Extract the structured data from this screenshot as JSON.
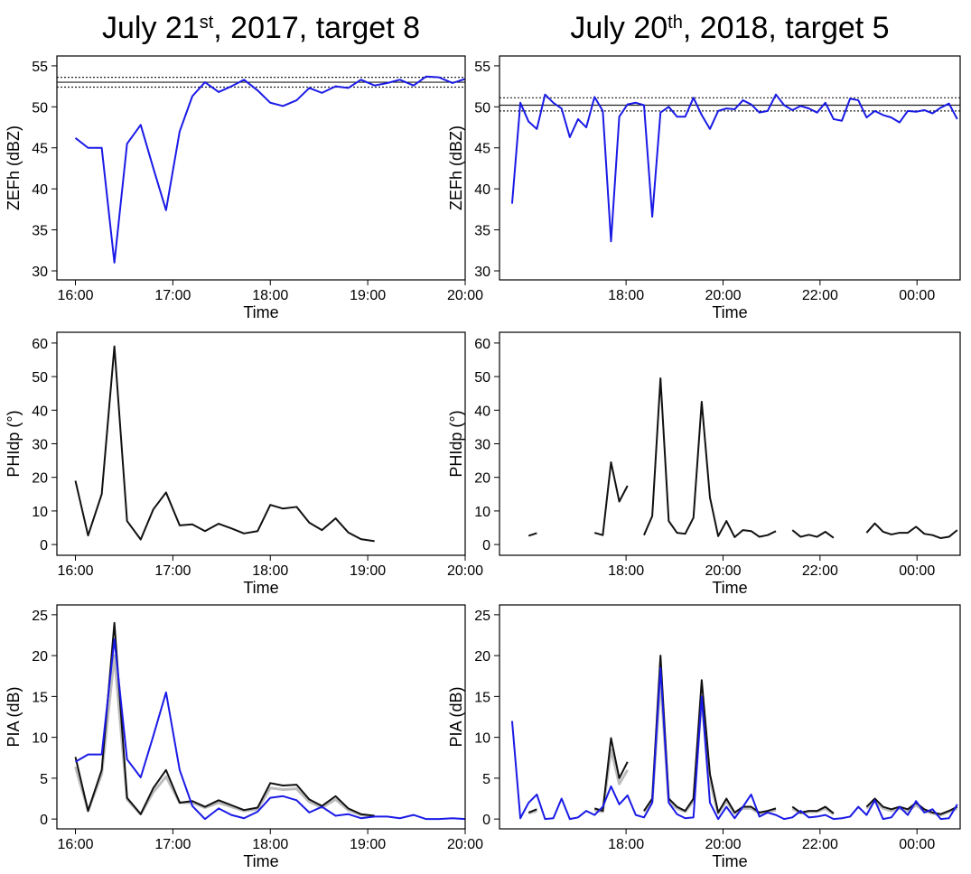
{
  "chart_data": [
    {
      "type": "line",
      "title": [
        "July 21",
        "st",
        ", 2017, target 8"
      ],
      "xlabel": "Time",
      "ylabel": "ZEFh (dBZ)",
      "x": [
        16,
        16.13,
        16.27,
        16.4,
        16.53,
        16.67,
        16.8,
        16.93,
        17.07,
        17.2,
        17.33,
        17.47,
        17.6,
        17.73,
        17.87,
        18,
        18.13,
        18.27,
        18.4,
        18.53,
        18.67,
        18.8,
        18.93,
        19.07,
        19.2,
        19.33,
        19.47,
        19.6,
        19.73,
        19.87,
        20
      ],
      "series": [
        {
          "color": "#1a1ae6",
          "values": [
            46.2,
            45.0,
            45.0,
            31.0,
            45.5,
            47.8,
            42.5,
            37.4,
            47.0,
            51.3,
            53.0,
            51.8,
            52.5,
            53.3,
            52.0,
            50.5,
            50.1,
            50.8,
            52.3,
            51.7,
            52.5,
            52.3,
            53.3,
            52.6,
            52.9,
            53.3,
            52.6,
            53.7,
            53.6,
            52.9,
            53.4
          ]
        }
      ],
      "reference_lines": [
        {
          "value": 53.0,
          "style": "solid"
        },
        {
          "value": 53.6,
          "style": "dotted"
        },
        {
          "value": 52.4,
          "style": "dotted"
        }
      ],
      "xlim": [
        15.81,
        20.0
      ],
      "xticks": [
        {
          "value": 16,
          "label": "16:00"
        },
        {
          "value": 17,
          "label": "17:00"
        },
        {
          "value": 18,
          "label": "18:00"
        },
        {
          "value": 19,
          "label": "19:00"
        },
        {
          "value": 20,
          "label": "20:00"
        }
      ],
      "ylim": [
        28.9,
        56.2
      ],
      "yticks": [
        30,
        35,
        40,
        45,
        50,
        55
      ]
    },
    {
      "type": "line",
      "title": [
        "July 20",
        "th",
        ", 2018, target 5"
      ],
      "xlabel": "Time",
      "ylabel": "ZEFh (dBZ)",
      "x": [
        15.65,
        15.82,
        15.99,
        16.16,
        16.33,
        16.5,
        16.67,
        16.84,
        17.01,
        17.18,
        17.35,
        17.52,
        17.69,
        17.86,
        18.03,
        18.2,
        18.37,
        18.54,
        18.71,
        18.88,
        19.05,
        19.22,
        19.39,
        19.56,
        19.73,
        19.9,
        20.07,
        20.24,
        20.41,
        20.58,
        20.75,
        20.92,
        21.09,
        21.26,
        21.43,
        21.6,
        21.77,
        21.94,
        22.11,
        22.28,
        22.45,
        22.62,
        22.79,
        22.96,
        23.13,
        23.3,
        23.47,
        23.64,
        23.81,
        23.98,
        24.15,
        24.32,
        24.49,
        24.66,
        24.83
      ],
      "series": [
        {
          "color": "#1a1ae6",
          "values": [
            38.2,
            50.5,
            48.2,
            47.3,
            51.5,
            50.5,
            49.8,
            46.3,
            48.5,
            47.5,
            51.2,
            49.5,
            33.6,
            48.8,
            50.3,
            50.5,
            50.2,
            36.6,
            49.3,
            50.0,
            48.8,
            48.8,
            51.1,
            49.0,
            47.3,
            49.5,
            49.8,
            49.7,
            50.8,
            50.3,
            49.3,
            49.5,
            51.5,
            50.2,
            49.6,
            50.1,
            49.8,
            49.3,
            50.5,
            48.5,
            48.3,
            51.0,
            50.8,
            48.7,
            49.5,
            49.0,
            48.7,
            48.1,
            49.5,
            49.4,
            49.6,
            49.2,
            49.9,
            50.4,
            48.5
          ]
        }
      ],
      "reference_lines": [
        {
          "value": 50.2,
          "style": "solid"
        },
        {
          "value": 51.1,
          "style": "dotted"
        },
        {
          "value": 49.5,
          "style": "dotted"
        }
      ],
      "xlim": [
        15.39,
        24.89
      ],
      "xticks": [
        {
          "value": 18,
          "label": "18:00"
        },
        {
          "value": 20,
          "label": "20:00"
        },
        {
          "value": 22,
          "label": "22:00"
        },
        {
          "value": 24,
          "label": "00:00"
        }
      ],
      "ylim": [
        28.9,
        56.2
      ],
      "yticks": [
        30,
        35,
        40,
        45,
        50,
        55
      ]
    },
    {
      "type": "line",
      "xlabel": "Time",
      "ylabel": "PHIdp (°)",
      "x": [
        16,
        16.13,
        16.27,
        16.4,
        16.53,
        16.67,
        16.8,
        16.93,
        17.07,
        17.2,
        17.33,
        17.47,
        17.6,
        17.73,
        17.87,
        18,
        18.13,
        18.27,
        18.4,
        18.53,
        18.67,
        18.8,
        18.93,
        19.07,
        19.2,
        19.33,
        19.47,
        19.6,
        19.73,
        19.87,
        20
      ],
      "series": [
        {
          "color": "#111111",
          "values": [
            19,
            2.7,
            15,
            59,
            7,
            1.5,
            10.5,
            15.5,
            5.7,
            6,
            4,
            6.2,
            4.8,
            3.3,
            4,
            11.8,
            10.7,
            11.2,
            6.5,
            4.3,
            7.8,
            3.6,
            1.6,
            1.0,
            null,
            null,
            null,
            null,
            null,
            null,
            null
          ]
        }
      ],
      "xlim": [
        15.81,
        20.0
      ],
      "xticks": [
        {
          "value": 16,
          "label": "16:00"
        },
        {
          "value": 17,
          "label": "17:00"
        },
        {
          "value": 18,
          "label": "18:00"
        },
        {
          "value": 19,
          "label": "19:00"
        },
        {
          "value": 20,
          "label": "20:00"
        }
      ],
      "ylim": [
        -3.2,
        63.2
      ],
      "yticks": [
        0,
        10,
        20,
        30,
        40,
        50,
        60
      ]
    },
    {
      "type": "line",
      "xlabel": "Time",
      "ylabel": "PHIdp (°)",
      "x": [
        15.65,
        15.82,
        15.99,
        16.16,
        16.33,
        16.5,
        16.67,
        16.84,
        17.01,
        17.18,
        17.35,
        17.52,
        17.69,
        17.86,
        18.03,
        18.2,
        18.37,
        18.54,
        18.71,
        18.88,
        19.05,
        19.22,
        19.39,
        19.56,
        19.73,
        19.9,
        20.07,
        20.24,
        20.41,
        20.58,
        20.75,
        20.92,
        21.09,
        21.26,
        21.43,
        21.6,
        21.77,
        21.94,
        22.11,
        22.28,
        22.45,
        22.62,
        22.79,
        22.96,
        23.13,
        23.3,
        23.47,
        23.64,
        23.81,
        23.98,
        24.15,
        24.32,
        24.49,
        24.66,
        24.83
      ],
      "series": [
        {
          "color": "#111111",
          "values": [
            null,
            null,
            2.6,
            3.4,
            null,
            null,
            null,
            null,
            null,
            null,
            3.5,
            2.8,
            24.5,
            12.8,
            17.5,
            null,
            2.8,
            8.5,
            49.5,
            7.0,
            3.5,
            3.2,
            8.0,
            42.5,
            14.0,
            2.5,
            7.0,
            2.2,
            4.3,
            4.0,
            2.3,
            2.8,
            4.0,
            null,
            4.3,
            2.3,
            2.9,
            2.3,
            3.8,
            2.0,
            null,
            null,
            null,
            3.5,
            6.3,
            3.8,
            3.0,
            3.5,
            3.5,
            5.3,
            3.2,
            2.8,
            1.9,
            2.3,
            4.3
          ]
        }
      ],
      "xlim": [
        15.39,
        24.89
      ],
      "xticks": [
        {
          "value": 18,
          "label": "18:00"
        },
        {
          "value": 20,
          "label": "20:00"
        },
        {
          "value": 22,
          "label": "22:00"
        },
        {
          "value": 24,
          "label": "00:00"
        }
      ],
      "ylim": [
        -3.2,
        63.2
      ],
      "yticks": [
        0,
        10,
        20,
        30,
        40,
        50,
        60
      ]
    },
    {
      "type": "line",
      "xlabel": "Time",
      "ylabel": "PIA (dB)",
      "x": [
        16,
        16.13,
        16.27,
        16.4,
        16.53,
        16.67,
        16.8,
        16.93,
        17.07,
        17.2,
        17.33,
        17.47,
        17.6,
        17.73,
        17.87,
        18,
        18.13,
        18.27,
        18.4,
        18.53,
        18.67,
        18.8,
        18.93,
        19.07,
        19.2,
        19.33,
        19.47,
        19.6,
        19.73,
        19.87,
        20
      ],
      "series": [
        {
          "color": "#bdbdbd",
          "values": [
            6.4,
            1.0,
            5.5,
            20,
            2.4,
            0.6,
            3.3,
            5.2,
            2.0,
            2.0,
            1.4,
            2.0,
            1.5,
            1.0,
            1.2,
            3.8,
            3.6,
            3.7,
            2.1,
            1.4,
            2.4,
            1.1,
            0.5,
            0.3,
            null,
            null,
            null,
            null,
            null,
            null,
            null
          ]
        },
        {
          "color": "#111111",
          "values": [
            7.6,
            1.0,
            6,
            24,
            2.6,
            0.6,
            3.8,
            6.0,
            2.0,
            2.2,
            1.5,
            2.3,
            1.7,
            1.1,
            1.4,
            4.4,
            4.1,
            4.2,
            2.4,
            1.6,
            2.8,
            1.3,
            0.6,
            0.4,
            null,
            null,
            null,
            null,
            null,
            null,
            null
          ]
        },
        {
          "color": "#1a1ae6",
          "values": [
            7.0,
            7.9,
            7.9,
            22,
            7.3,
            5.1,
            10.2,
            15.5,
            6.0,
            1.6,
            0.0,
            1.3,
            0.5,
            0.1,
            0.9,
            2.6,
            2.8,
            2.3,
            0.8,
            1.5,
            0.4,
            0.6,
            0.1,
            0.3,
            0.3,
            0.1,
            0.5,
            0.0,
            0.0,
            0.1,
            0.0
          ]
        }
      ],
      "xlim": [
        15.81,
        20.0
      ],
      "xticks": [
        {
          "value": 16,
          "label": "16:00"
        },
        {
          "value": 17,
          "label": "17:00"
        },
        {
          "value": 18,
          "label": "18:00"
        },
        {
          "value": 19,
          "label": "19:00"
        },
        {
          "value": 20,
          "label": "20:00"
        }
      ],
      "ylim": [
        -1.2,
        26.2
      ],
      "yticks": [
        0,
        5,
        10,
        15,
        20,
        25
      ]
    },
    {
      "type": "line",
      "xlabel": "Time",
      "ylabel": "PIA (dB)",
      "x": [
        15.65,
        15.82,
        15.99,
        16.16,
        16.33,
        16.5,
        16.67,
        16.84,
        17.01,
        17.18,
        17.35,
        17.52,
        17.69,
        17.86,
        18.03,
        18.2,
        18.37,
        18.54,
        18.71,
        18.88,
        19.05,
        19.22,
        19.39,
        19.56,
        19.73,
        19.9,
        20.07,
        20.24,
        20.41,
        20.58,
        20.75,
        20.92,
        21.09,
        21.26,
        21.43,
        21.6,
        21.77,
        21.94,
        22.11,
        22.28,
        22.45,
        22.62,
        22.79,
        22.96,
        23.13,
        23.3,
        23.47,
        23.64,
        23.81,
        23.98,
        24.15,
        24.32,
        24.49,
        24.66,
        24.83
      ],
      "series": [
        {
          "color": "#bdbdbd",
          "values": [
            null,
            null,
            0.7,
            1.0,
            null,
            null,
            null,
            null,
            null,
            null,
            1.1,
            0.9,
            8.5,
            4.3,
            6.0,
            null,
            0.9,
            2.2,
            17.0,
            2.2,
            1.3,
            0.9,
            2.2,
            14.5,
            4.7,
            0.7,
            2.2,
            0.7,
            1.3,
            1.3,
            0.7,
            0.9,
            1.1,
            null,
            1.3,
            0.7,
            0.9,
            0.9,
            1.3,
            0.6,
            null,
            null,
            null,
            1.3,
            2.2,
            1.3,
            1.0,
            1.3,
            1.0,
            1.7,
            1.0,
            0.7,
            0.5,
            0.9,
            1.3
          ]
        },
        {
          "color": "#111111",
          "values": [
            null,
            null,
            0.8,
            1.2,
            null,
            null,
            null,
            null,
            null,
            null,
            1.3,
            1.0,
            9.9,
            5.0,
            7.0,
            null,
            1.0,
            2.5,
            20.0,
            2.5,
            1.5,
            1.0,
            2.5,
            17.0,
            5.5,
            0.8,
            2.5,
            0.8,
            1.5,
            1.5,
            0.8,
            1.0,
            1.3,
            null,
            1.5,
            0.8,
            1.0,
            1.0,
            1.5,
            0.7,
            null,
            null,
            null,
            1.5,
            2.5,
            1.5,
            1.2,
            1.5,
            1.2,
            2.0,
            1.2,
            0.8,
            0.6,
            1.0,
            1.5
          ]
        },
        {
          "color": "#1a1ae6",
          "values": [
            12.0,
            0.1,
            2.0,
            3.0,
            0.0,
            0.1,
            2.5,
            0.0,
            0.2,
            1.0,
            0.5,
            1.5,
            4.0,
            1.8,
            2.9,
            0.5,
            0.2,
            2.0,
            18.5,
            2.0,
            0.6,
            0.1,
            0.2,
            15.0,
            2.0,
            0.0,
            1.5,
            0.1,
            1.5,
            3.0,
            0.3,
            0.8,
            0.5,
            0.0,
            0.2,
            1.0,
            0.2,
            0.3,
            0.5,
            0.0,
            0.1,
            0.3,
            1.5,
            0.5,
            2.3,
            0.0,
            0.2,
            1.5,
            0.5,
            2.2,
            0.8,
            1.2,
            0.0,
            0.1,
            1.8
          ]
        }
      ],
      "xlim": [
        15.39,
        24.89
      ],
      "xticks": [
        {
          "value": 18,
          "label": "18:00"
        },
        {
          "value": 20,
          "label": "20:00"
        },
        {
          "value": 22,
          "label": "22:00"
        },
        {
          "value": 24,
          "label": "00:00"
        }
      ],
      "ylim": [
        -1.2,
        26.2
      ],
      "yticks": [
        0,
        5,
        10,
        15,
        20,
        25
      ]
    }
  ]
}
